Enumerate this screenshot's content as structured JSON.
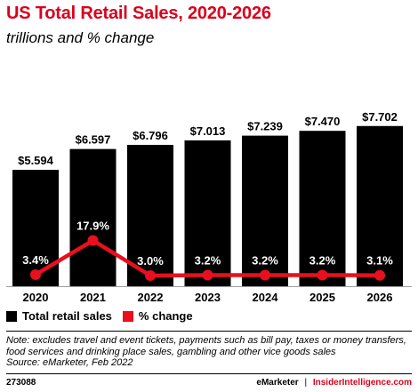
{
  "chart_data": {
    "type": "bar",
    "title": "US Total Retail Sales, 2020-2026",
    "subtitle": "trillions and % change",
    "categories": [
      "2020",
      "2021",
      "2022",
      "2023",
      "2024",
      "2025",
      "2026"
    ],
    "series": [
      {
        "name": "Total retail sales",
        "type": "bar",
        "values": [
          5.594,
          6.597,
          6.796,
          7.013,
          7.239,
          7.47,
          7.702
        ],
        "labels": [
          "$5.594",
          "$6.597",
          "$6.796",
          "$7.013",
          "$7.239",
          "$7.470",
          "$7.702"
        ],
        "color": "#000000"
      },
      {
        "name": "% change",
        "type": "line",
        "values": [
          3.4,
          17.9,
          3.0,
          3.2,
          3.2,
          3.2,
          3.1
        ],
        "labels": [
          "3.4%",
          "17.9%",
          "3.0%",
          "3.2%",
          "3.2%",
          "3.2%",
          "3.1%"
        ],
        "color": "#e8101e"
      }
    ],
    "legend_position": "bottom-left",
    "grid": false
  },
  "note": "Note: excludes travel and event tickets, payments such as bill pay, taxes or money transfers, food services and drinking place sales, gambling and other vice goods sales",
  "source": "Source: eMarketer, Feb 2022",
  "footer": {
    "chart_id": "273088",
    "brand_left": "eMarketer",
    "separator": "|",
    "brand_right": "InsiderIntelligence.com"
  }
}
